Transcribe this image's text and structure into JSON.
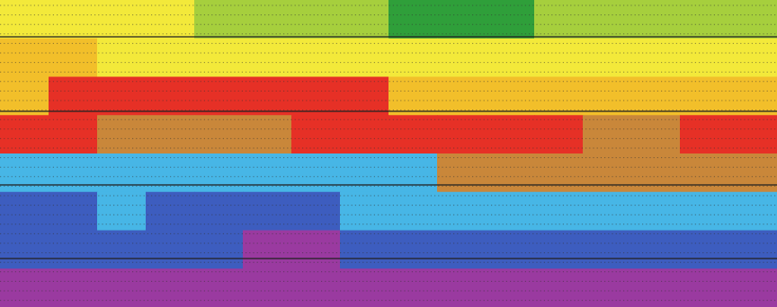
{
  "chart_data": {
    "type": "heatmap",
    "title": "",
    "xlabel": "",
    "ylabel": "",
    "grid": true,
    "legend": "none",
    "colorscale": [
      {
        "name": "green",
        "color": "#2f9f3a"
      },
      {
        "name": "light-green",
        "color": "#a6cf3d"
      },
      {
        "name": "yellow",
        "color": "#f3e93a"
      },
      {
        "name": "amber",
        "color": "#f2bf2a"
      },
      {
        "name": "red",
        "color": "#e63026"
      },
      {
        "name": "ochre",
        "color": "#c9873a"
      },
      {
        "name": "light-blue",
        "color": "#47b6e6"
      },
      {
        "name": "blue",
        "color": "#3d5dbf"
      },
      {
        "name": "purple",
        "color": "#9a3aa0"
      }
    ],
    "rows": 8,
    "cols": 16,
    "values": [
      [
        2.2,
        2.0,
        1.8,
        1.5,
        1.2,
        1.0,
        0.8,
        0.6,
        0.4,
        0.3,
        0.4,
        0.7,
        1.0,
        1.2,
        1.3,
        1.4
      ],
      [
        2.6,
        2.5,
        2.4,
        2.2,
        2.0,
        2.0,
        1.9,
        1.7,
        1.6,
        1.5,
        1.6,
        1.7,
        1.8,
        1.8,
        1.9,
        2.0
      ],
      [
        3.4,
        3.6,
        3.8,
        3.9,
        4.0,
        4.0,
        3.8,
        3.5,
        3.2,
        3.0,
        3.0,
        3.0,
        3.1,
        3.1,
        3.2,
        3.2
      ],
      [
        4.3,
        4.4,
        4.5,
        4.6,
        4.6,
        4.5,
        4.4,
        4.2,
        4.0,
        4.0,
        4.2,
        4.4,
        4.5,
        4.5,
        4.4,
        4.3
      ],
      [
        5.8,
        5.8,
        5.9,
        6.1,
        6.2,
        6.1,
        6.0,
        5.8,
        5.6,
        5.4,
        5.1,
        4.9,
        4.9,
        5.0,
        5.2,
        5.3
      ],
      [
        6.6,
        6.5,
        6.4,
        6.5,
        6.7,
        6.8,
        6.7,
        6.4,
        6.2,
        6.1,
        6.3,
        6.2,
        5.9,
        5.8,
        5.9,
        6.0
      ],
      [
        7.2,
        7.3,
        7.1,
        7.0,
        7.3,
        7.5,
        7.6,
        7.4,
        7.2,
        7.1,
        7.3,
        7.2,
        6.8,
        6.6,
        6.7,
        6.9
      ],
      [
        8.0,
        8.0,
        7.9,
        7.9,
        8.0,
        8.0,
        8.0,
        8.0,
        8.0,
        7.9,
        8.0,
        8.0,
        7.9,
        7.9,
        8.0,
        8.0
      ]
    ]
  }
}
